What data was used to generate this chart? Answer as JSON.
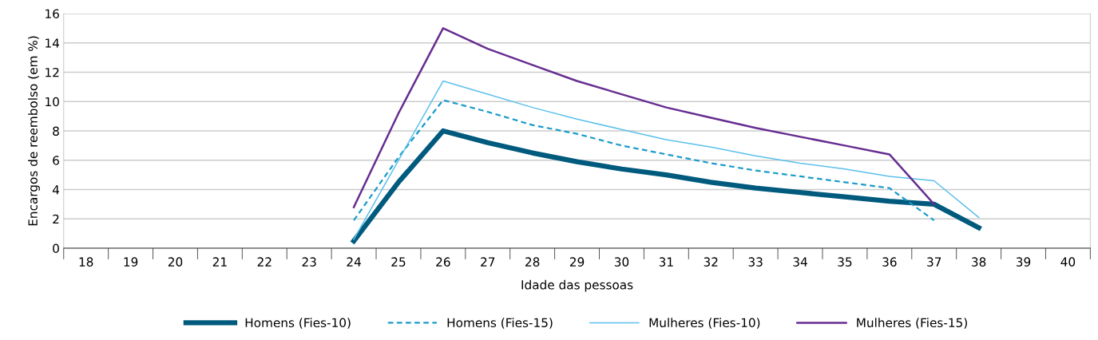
{
  "chart_data": {
    "type": "line",
    "xlabel": "Idade das pessoas",
    "ylabel": "Encargos de reembolso (em %)",
    "categories": [
      "18",
      "19",
      "20",
      "21",
      "22",
      "23",
      "24",
      "25",
      "26",
      "27",
      "28",
      "29",
      "30",
      "31",
      "32",
      "33",
      "34",
      "35",
      "36",
      "37",
      "38",
      "39",
      "40"
    ],
    "ylim": [
      0,
      16
    ],
    "yticks": [
      0,
      2,
      4,
      6,
      8,
      10,
      12,
      14,
      16
    ],
    "grid": "y",
    "legend": "bottom",
    "marker": "none",
    "series": [
      {
        "name": "Homens (Fies-10)",
        "color": "#005a7d",
        "line_style": "solid",
        "values": [
          null,
          null,
          null,
          null,
          null,
          null,
          0.5,
          4.5,
          8.0,
          7.2,
          6.5,
          5.9,
          5.4,
          5.0,
          4.5,
          4.1,
          3.8,
          3.5,
          3.2,
          3.0,
          1.4,
          null,
          null
        ]
      },
      {
        "name": "Homens (Fies-15)",
        "color": "#1a9cc9",
        "line_style": "dashed",
        "values": [
          null,
          null,
          null,
          null,
          null,
          null,
          1.9,
          6.2,
          10.1,
          9.3,
          8.4,
          7.8,
          7.0,
          6.4,
          5.8,
          5.3,
          4.9,
          4.5,
          4.1,
          1.9,
          null,
          null,
          null
        ]
      },
      {
        "name": "Mulheres (Fies-10)",
        "color": "#5bc0eb",
        "line_style": "solid",
        "values": [
          null,
          null,
          null,
          null,
          null,
          null,
          0.6,
          6.0,
          11.4,
          10.5,
          9.6,
          8.8,
          8.1,
          7.4,
          6.9,
          6.3,
          5.8,
          5.4,
          4.9,
          4.6,
          2.1,
          null,
          null
        ]
      },
      {
        "name": "Mulheres (Fies-15)",
        "color": "#662d91",
        "line_style": "solid",
        "values": [
          null,
          null,
          null,
          null,
          null,
          null,
          2.8,
          9.2,
          15.0,
          13.6,
          12.5,
          11.4,
          10.5,
          9.6,
          8.9,
          8.2,
          7.6,
          7.0,
          6.4,
          3.0,
          null,
          null,
          null
        ]
      }
    ]
  }
}
